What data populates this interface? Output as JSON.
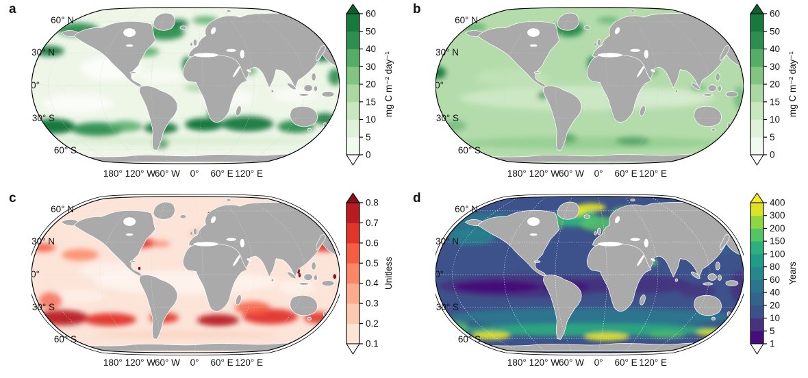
{
  "figure": {
    "background": "#ffffff",
    "land_color": "#aaaaaa",
    "outline_color": "#000000",
    "lat_ticks": [
      "60° N",
      "30° N",
      "0°",
      "30° S",
      "60° S"
    ],
    "lon_ticks": [
      "180°",
      "120° W",
      "60° W",
      "0°",
      "60° E",
      "120° E"
    ],
    "panels": [
      {
        "id": "a",
        "label": "a",
        "base_color": "#eef6e8",
        "grid_color": "#cbcbcb",
        "colorbar": {
          "unit": "mg C m⁻² day⁻¹",
          "tick_labels": [
            "0",
            "5",
            "10",
            "15",
            "20",
            "30",
            "40",
            "50",
            "60"
          ],
          "segment_colors": [
            "#f2f9ee",
            "#e0f1d9",
            "#c9e7bf",
            "#abd8a2",
            "#82c583",
            "#55ad68",
            "#2d8e50",
            "#16793e"
          ],
          "arrow_high": "#0b5e31",
          "arrow_low": "#ffffff"
        }
      },
      {
        "id": "b",
        "label": "b",
        "base_color": "#b4dcab",
        "grid_color": "#cbcbcb",
        "colorbar": {
          "unit": "mg C m⁻² day⁻¹",
          "tick_labels": [
            "0",
            "5",
            "10",
            "15",
            "20",
            "30",
            "40",
            "50",
            "60"
          ],
          "segment_colors": [
            "#f2f9ee",
            "#e0f1d9",
            "#c9e7bf",
            "#abd8a2",
            "#82c583",
            "#55ad68",
            "#2d8e50",
            "#16793e"
          ],
          "arrow_high": "#0b5e31",
          "arrow_low": "#ffffff"
        }
      },
      {
        "id": "c",
        "label": "c",
        "base_color": "#fce4d8",
        "grid_color": "#dcdcdc",
        "colorbar": {
          "unit": "Unitless",
          "tick_labels": [
            "0.1",
            "0.2",
            "0.3",
            "0.4",
            "0.5",
            "0.6",
            "0.7",
            "0.8"
          ],
          "segment_colors": [
            "#fde5d6",
            "#fccab2",
            "#fcab8c",
            "#fb8767",
            "#f65d43",
            "#e1342a",
            "#b81b21"
          ],
          "arrow_high": "#85101b",
          "arrow_low": "#ffffff"
        }
      },
      {
        "id": "d",
        "label": "d",
        "base_color": "#3d528a",
        "grid_color": "#ffffff",
        "colorbar": {
          "unit": "Years",
          "tick_labels": [
            "1",
            "5",
            "10",
            "20",
            "40",
            "60",
            "80",
            "100",
            "150",
            "200",
            "300",
            "400"
          ],
          "segment_colors": [
            "#450d78",
            "#46327e",
            "#3d528a",
            "#33648d",
            "#2a768e",
            "#24898d",
            "#1f9d88",
            "#2cb17e",
            "#54c567",
            "#90d643",
            "#dde226"
          ],
          "arrow_high": "#fbe723",
          "arrow_low": "#ffffff"
        }
      }
    ]
  },
  "chart_data": [
    {
      "type": "heatmap",
      "panel": "a",
      "projection": "global ocean map (Robinson-style), land masked grey",
      "colorbar_unit": "mg C m⁻² day⁻¹",
      "colorbar_ticks": [
        0,
        5,
        10,
        15,
        20,
        30,
        40,
        50,
        60
      ],
      "colorbar_range": [
        0,
        60
      ],
      "lat_tick_labels": [
        "60° N",
        "30° N",
        "0°",
        "30° S",
        "60° S"
      ],
      "lon_tick_labels": [
        "180°",
        "120° W",
        "60° W",
        "0°",
        "60° E",
        "120° E"
      ],
      "high_value_regions": "patchy values of 30-60 in subpolar North Pacific, subpolar North Atlantic, NW-African and Benguela upwelling zones, Kuroshio, Patagonian shelf and a circumglobal band near 30-45° S",
      "low_value_regions": "values below 5-10 across subtropical gyres and much of the tropics"
    },
    {
      "type": "heatmap",
      "panel": "b",
      "projection": "global ocean map (Robinson-style), land masked grey",
      "colorbar_unit": "mg C m⁻² day⁻¹",
      "colorbar_ticks": [
        0,
        5,
        10,
        15,
        20,
        30,
        40,
        50,
        60
      ],
      "colorbar_range": [
        0,
        60
      ],
      "lat_tick_labels": [
        "60° N",
        "30° N",
        "0°",
        "30° S",
        "60° S"
      ],
      "lon_tick_labels": [
        "180°",
        "120° W",
        "60° W",
        "0°",
        "60° E",
        "120° E"
      ],
      "high_value_regions": "smooth field ~15-25 overall, darker maxima (40-60) south of Greenland, off NW Africa, Arabian Sea, Kuroshio/Japan and equatorial upwelling at map edge",
      "low_value_regions": "slightly lighter (~10-15) tropical gyre interiors"
    },
    {
      "type": "heatmap",
      "panel": "c",
      "projection": "global ocean map (Robinson-style), land masked grey",
      "colorbar_unit": "Unitless",
      "colorbar_ticks": [
        0.1,
        0.2,
        0.3,
        0.4,
        0.5,
        0.6,
        0.7,
        0.8
      ],
      "colorbar_range": [
        0.1,
        0.8
      ],
      "lat_tick_labels": [
        "60° N",
        "30° N",
        "0°",
        "30° S",
        "60° S"
      ],
      "lon_tick_labels": [
        "180°",
        "120° W",
        "60° W",
        "0°",
        "60° E",
        "120° E"
      ],
      "high_value_regions": "0.5-0.8 along western-boundary currents near 35° N (Gulf Stream, Kuroshio) and a circumglobal band near 35-45° S; isolated dark-red (>0.8) coastal specks",
      "low_value_regions": "0.1-0.2 over tropics, subtropical gyres and polar margins"
    },
    {
      "type": "heatmap",
      "panel": "d",
      "projection": "global ocean map (Robinson-style), land masked grey",
      "colorbar_unit": "Years",
      "colorbar_ticks": [
        1,
        5,
        10,
        20,
        40,
        60,
        80,
        100,
        150,
        200,
        300,
        400
      ],
      "colorbar_range": [
        1,
        400
      ],
      "lat_tick_labels": [
        "60° N",
        "30° N",
        "0°",
        "30° S",
        "60° S"
      ],
      "lon_tick_labels": [
        "180°",
        "120° W",
        "60° W",
        "0°",
        "60° E",
        "120° E"
      ],
      "high_value_regions": "150-400+ (green-yellow) in subpolar North Atlantic around Greenland/Iceland and along the Antarctic margin; smaller green maximum in the Arabian Sea",
      "low_value_regions": "1-10 (dark purple-blue) across the tropical Pacific, Atlantic and Indian Oceans"
    }
  ]
}
